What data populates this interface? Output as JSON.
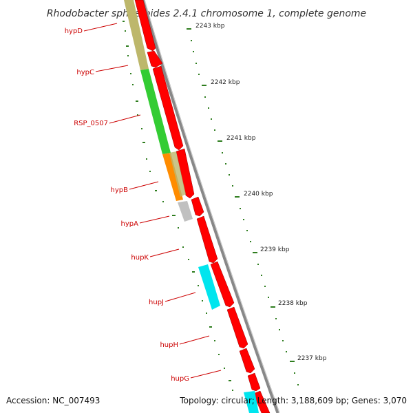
{
  "title": "Rhodobacter sphaeroides 2.4.1 chromosome 1, complete genome",
  "accession": "Accession: NC_007493",
  "summary": "Topology: circular; Length: 3,188,609 bp; Genes: 3,070",
  "colors": {
    "forward_strand": "#ff0000",
    "backbone": "#888888",
    "tick": "#2e7d1e",
    "label": "#cc0000",
    "hypD": "#bdb76b",
    "hypC": "#bdb76b",
    "RSP_0507": "#33cc33",
    "hypB": "#ff8c00",
    "hypA": "#c0c0c0",
    "hupJ": "#00e5ee"
  },
  "gene_labels": [
    {
      "name": "hypD"
    },
    {
      "name": "hypC"
    },
    {
      "name": "RSP_0507"
    },
    {
      "name": "hypB"
    },
    {
      "name": "hypA"
    },
    {
      "name": "hupK"
    },
    {
      "name": "hupJ"
    },
    {
      "name": "hupH"
    },
    {
      "name": "hupG"
    }
  ],
  "kbp_labels": [
    {
      "text": "2243 kbp"
    },
    {
      "text": "2242 kbp"
    },
    {
      "text": "2241 kbp"
    },
    {
      "text": "2240 kbp"
    },
    {
      "text": "2239 kbp"
    },
    {
      "text": "2238 kbp"
    },
    {
      "text": "2237 kbp"
    }
  ]
}
